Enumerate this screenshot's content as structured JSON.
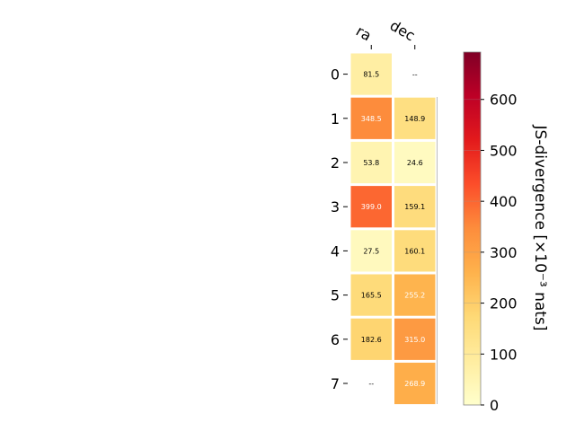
{
  "chart_data": {
    "type": "heatmap",
    "columns": [
      "ra",
      "dec"
    ],
    "rows": [
      "0",
      "1",
      "2",
      "3",
      "4",
      "5",
      "6",
      "7"
    ],
    "values": [
      [
        81.5,
        null
      ],
      [
        348.5,
        148.9
      ],
      [
        53.8,
        24.6
      ],
      [
        399.0,
        159.1
      ],
      [
        27.5,
        160.1
      ],
      [
        165.5,
        255.2
      ],
      [
        182.6,
        315.0
      ],
      [
        null,
        268.9
      ]
    ],
    "labels": [
      [
        "81.5",
        "--"
      ],
      [
        "348.5",
        "148.9"
      ],
      [
        "53.8",
        "24.6"
      ],
      [
        "399.0",
        "159.1"
      ],
      [
        "27.5",
        "160.1"
      ],
      [
        "165.5",
        "255.2"
      ],
      [
        "182.6",
        "315.0"
      ],
      [
        "--",
        "268.9"
      ]
    ],
    "colorbar": {
      "label": "JS-divergence [×10⁻³ nats]",
      "range": [
        0,
        693
      ],
      "ticks": [
        "0",
        "100",
        "200",
        "300",
        "400",
        "500",
        "600"
      ],
      "colormap": "YlOrRd"
    }
  }
}
